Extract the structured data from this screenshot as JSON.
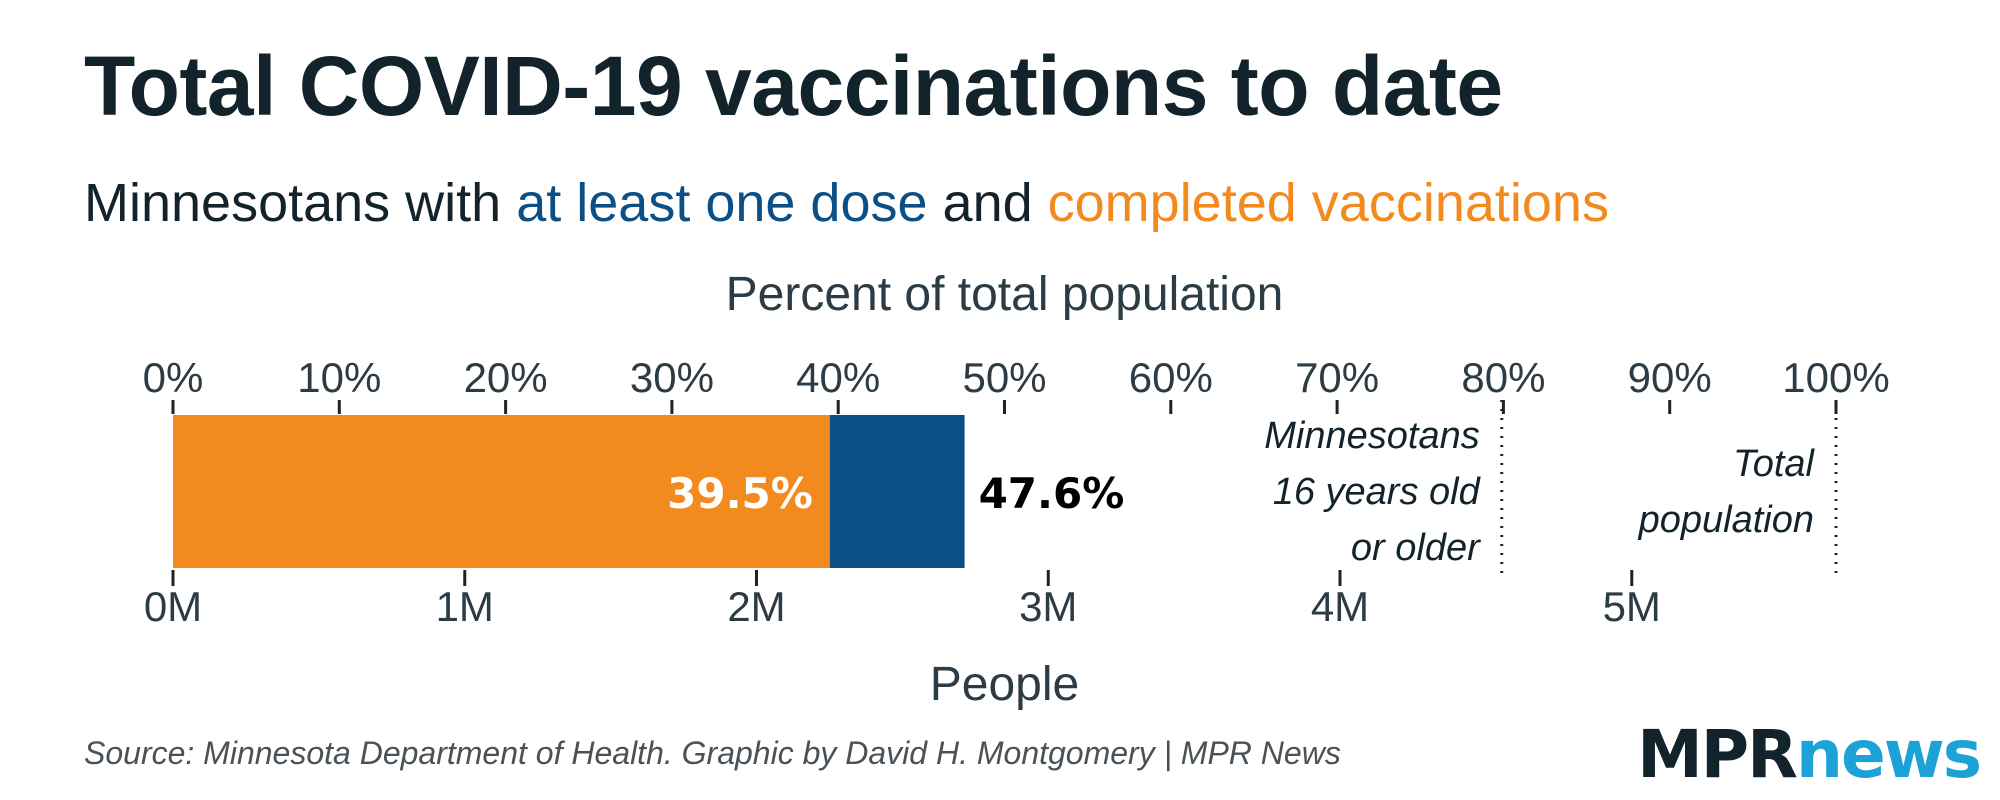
{
  "title": "Total COVID-19 vaccinations to date",
  "subtitle": {
    "prefix": "Minnesotans with ",
    "dose": "at least one dose",
    "middle": " and ",
    "completed": "completed vaccinations"
  },
  "colors": {
    "completed": "#f28a1e",
    "one_dose": "#0b4f87",
    "text": "#13232b",
    "axis_text": "#2c3b44"
  },
  "chart_data": {
    "type": "bar",
    "orientation": "horizontal",
    "stacked": true,
    "title": "Total COVID-19 vaccinations to date",
    "top_axis": {
      "label": "Percent of total population",
      "range": [
        0,
        100
      ],
      "ticks": [
        0,
        10,
        20,
        30,
        40,
        50,
        60,
        70,
        80,
        90,
        100
      ],
      "tick_labels": [
        "0%",
        "10%",
        "20%",
        "30%",
        "40%",
        "50%",
        "60%",
        "70%",
        "80%",
        "90%",
        "100%"
      ]
    },
    "bottom_axis": {
      "label": "People",
      "ticks": [
        0,
        1000000,
        2000000,
        3000000,
        4000000,
        5000000
      ],
      "tick_labels": [
        "0M",
        "1M",
        "2M",
        "3M",
        "4M",
        "5M"
      ]
    },
    "series": [
      {
        "name": "completed vaccinations",
        "value_pct": 39.5,
        "label": "39.5%"
      },
      {
        "name": "at least one dose",
        "value_pct": 47.6,
        "label": "47.6%"
      }
    ],
    "reference_lines": [
      {
        "value_pct": 79.9,
        "lines": [
          "Minnesotans",
          "16 years old",
          "or older"
        ]
      },
      {
        "value_pct": 100,
        "lines": [
          "Total",
          "population"
        ]
      }
    ]
  },
  "source": "Source: Minnesota Department of Health. Graphic by David H. Montgomery | MPR News",
  "logo": {
    "part1": "MPR",
    "part2": "news"
  }
}
